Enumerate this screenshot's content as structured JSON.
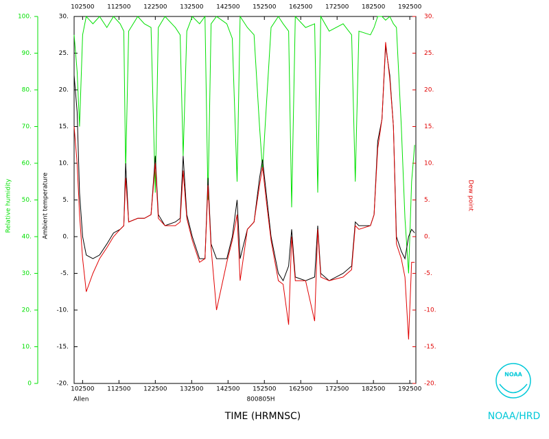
{
  "chart_data": {
    "type": "line",
    "xscale": "time",
    "xlabel": "TIME (HRMNSC)",
    "storm": "Allen",
    "flight": "800805H",
    "logo_text": "NOAA",
    "agency": "NOAA/HRD",
    "x": [
      101100,
      101600,
      102000,
      102500,
      103100,
      104200,
      105300,
      110500,
      111600,
      112700,
      113300,
      113600,
      114100,
      115600,
      120700,
      121800,
      122500,
      123000,
      124100,
      125800,
      130600,
      131100,
      131700,
      132600,
      133800,
      134700,
      135200,
      135700,
      140600,
      142300,
      143200,
      144000,
      144500,
      145700,
      150800,
      151700,
      152200,
      152800,
      153600,
      154800,
      155600,
      160500,
      161000,
      161600,
      163300,
      164800,
      165300,
      165800,
      171200,
      173500,
      174900,
      175500,
      180100,
      182000,
      182600,
      183200,
      183900,
      184500,
      185200,
      185800,
      190300,
      191100,
      191700,
      192300,
      192800,
      193300
    ],
    "xlim": [
      101100,
      193500
    ],
    "xticks": [
      102500,
      112500,
      122500,
      132500,
      142500,
      152500,
      162500,
      172500,
      182500,
      192500
    ],
    "series": [
      {
        "name": "Relative humidity",
        "color": "#00e000",
        "axis": "y3",
        "values": [
          95,
          85,
          70,
          95,
          100,
          98,
          100,
          97,
          100,
          98,
          96,
          58,
          96,
          100,
          98,
          97,
          52,
          97,
          100,
          97,
          95,
          62,
          96,
          100,
          98,
          100,
          50,
          98,
          100,
          98,
          94,
          55,
          100,
          97,
          95,
          70,
          58,
          75,
          97,
          100,
          98,
          96,
          48,
          100,
          97,
          98,
          52,
          100,
          96,
          98,
          95,
          55,
          96,
          95,
          97,
          100,
          100,
          99,
          100,
          98,
          97,
          70,
          45,
          30,
          55,
          65
        ]
      },
      {
        "name": "Ambient temperature",
        "color": "#000000",
        "axis": "y",
        "values": [
          22,
          17,
          6,
          0,
          -2.5,
          -3,
          -2.5,
          -1,
          0.5,
          1,
          1.5,
          10,
          2,
          2.5,
          2.5,
          3,
          11,
          3,
          1.5,
          2,
          2.5,
          11,
          3,
          0,
          -3,
          -3,
          8,
          -1,
          -3,
          -3,
          0,
          5,
          -3,
          1,
          2,
          8,
          10.5,
          6,
          0,
          -5,
          -6,
          -4,
          1,
          -5.5,
          -6,
          -5.5,
          1.5,
          -5,
          -6,
          -5,
          -4,
          2,
          1.5,
          1.5,
          3,
          13,
          16,
          26,
          22,
          15,
          0,
          -2,
          -3,
          0,
          1,
          0.5
        ]
      },
      {
        "name": "Dew point",
        "color": "#e00000",
        "axis": "y2",
        "values": [
          15,
          10,
          3,
          -3,
          -7.5,
          -5,
          -3,
          -1.5,
          0,
          1,
          1.5,
          8,
          2,
          2.5,
          2.5,
          3,
          10,
          2.5,
          1.5,
          1.5,
          2,
          9,
          2.5,
          -0.5,
          -3.5,
          -3,
          7,
          -1.5,
          -10,
          -3.5,
          -0.5,
          3,
          -6,
          1,
          2,
          7,
          9.5,
          5,
          -0.5,
          -6,
          -6.5,
          -12,
          0,
          -6,
          -6,
          -11.5,
          1,
          -5.5,
          -6,
          -5.5,
          -4.5,
          1.5,
          1,
          1.5,
          3,
          12,
          16,
          26.5,
          21.5,
          15,
          -1,
          -3,
          -5.5,
          -14,
          -3.5,
          -3.5
        ]
      }
    ],
    "ylim": [
      -20,
      30
    ],
    "yticks": [
      {
        "value": -20,
        "label": "-20."
      },
      {
        "value": -15,
        "label": "-15."
      },
      {
        "value": -10,
        "label": "-10."
      },
      {
        "value": -5,
        "label": "-5."
      },
      {
        "value": 0,
        "label": "0."
      },
      {
        "value": 5,
        "label": "5."
      },
      {
        "value": 10,
        "label": "10."
      },
      {
        "value": 15,
        "label": "15."
      },
      {
        "value": 20,
        "label": "20."
      },
      {
        "value": 25,
        "label": "25."
      },
      {
        "value": 30,
        "label": "30."
      }
    ],
    "y2lim": [
      -20,
      30
    ],
    "y2ticks": [
      {
        "value": -20,
        "label": "-20."
      },
      {
        "value": -15,
        "label": "-15."
      },
      {
        "value": -10,
        "label": "-10."
      },
      {
        "value": -5,
        "label": "-5."
      },
      {
        "value": 0,
        "label": "0."
      },
      {
        "value": 5,
        "label": "5."
      },
      {
        "value": 10,
        "label": "10."
      },
      {
        "value": 15,
        "label": "15."
      },
      {
        "value": 20,
        "label": "20."
      },
      {
        "value": 25,
        "label": "25."
      },
      {
        "value": 30,
        "label": "30."
      }
    ],
    "y3lim": [
      0,
      100
    ],
    "y3ticks": [
      0,
      {
        "value": 10,
        "label": "10."
      },
      {
        "value": 20,
        "label": "20."
      },
      {
        "value": 30,
        "label": "30."
      },
      {
        "value": 40,
        "label": "40."
      },
      {
        "value": 50,
        "label": "50."
      },
      {
        "value": 60,
        "label": "60."
      },
      {
        "value": 70,
        "label": "70."
      },
      {
        "value": 80,
        "label": "80."
      },
      {
        "value": 90,
        "label": "90."
      },
      {
        "value": 100,
        "label": "100."
      }
    ]
  }
}
